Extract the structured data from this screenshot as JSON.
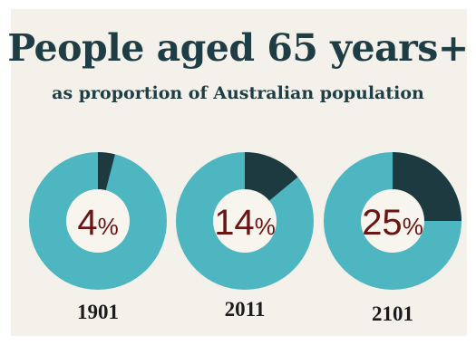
{
  "colors": {
    "ring": "#4db6c0",
    "wedge": "#1e3a41",
    "center": "#f7f5ee",
    "percent_text": "#6b1414",
    "title_text": "#1f3d45",
    "background": "#f3f1ea"
  },
  "chart_data": {
    "type": "pie",
    "title": "People aged 65 years+",
    "subtitle": "as proportion of Australian population",
    "unit": "%",
    "categories": [
      "1901",
      "2011",
      "2101"
    ],
    "values": [
      4,
      14,
      25
    ]
  }
}
